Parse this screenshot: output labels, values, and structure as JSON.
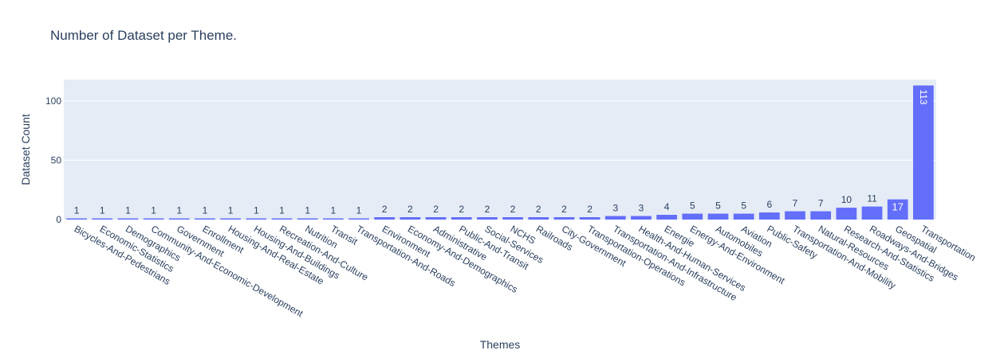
{
  "chart_data": {
    "type": "bar",
    "title": "Number of Dataset per Theme.",
    "xlabel": "Themes",
    "ylabel": "Dataset Count",
    "ylim": [
      0,
      118
    ],
    "yticks": [
      0,
      50,
      100
    ],
    "grid": true,
    "bar_color": "#636efa",
    "plot_bg": "#e5ecf6",
    "categories": [
      "Bicycles-And-Pedestrians",
      "Economic-Statistics",
      "Demographics",
      "Community-And-Economic-Development",
      "Government",
      "Enrollment",
      "Housing-And-Real-Estate",
      "Housing-And-Buildings",
      "Recreation-And-Culture",
      "Nutrition",
      "Transit",
      "Transportation-And-Roads",
      "Environment",
      "Economy-And-Demographics",
      "Administrative",
      "Public-And-Transit",
      "Social-Services",
      "NCHS",
      "Railroads",
      "City-Government",
      "Transportation-Operations",
      "Transportation-And-Infrastructure",
      "Health-And-Human-Services",
      "Energie",
      "Energy-And-Environment",
      "Automobiles",
      "Aviation",
      "Public-Safety",
      "Transportation-And-Mobility",
      "Natural-Resources",
      "Research-And-Statistics",
      "Roadways-And-Bridges",
      "Geospatial",
      "Transportation"
    ],
    "values": [
      1,
      1,
      1,
      1,
      1,
      1,
      1,
      1,
      1,
      1,
      1,
      1,
      2,
      2,
      2,
      2,
      2,
      2,
      2,
      2,
      2,
      3,
      3,
      4,
      5,
      5,
      5,
      6,
      7,
      7,
      10,
      11,
      17,
      113
    ]
  }
}
